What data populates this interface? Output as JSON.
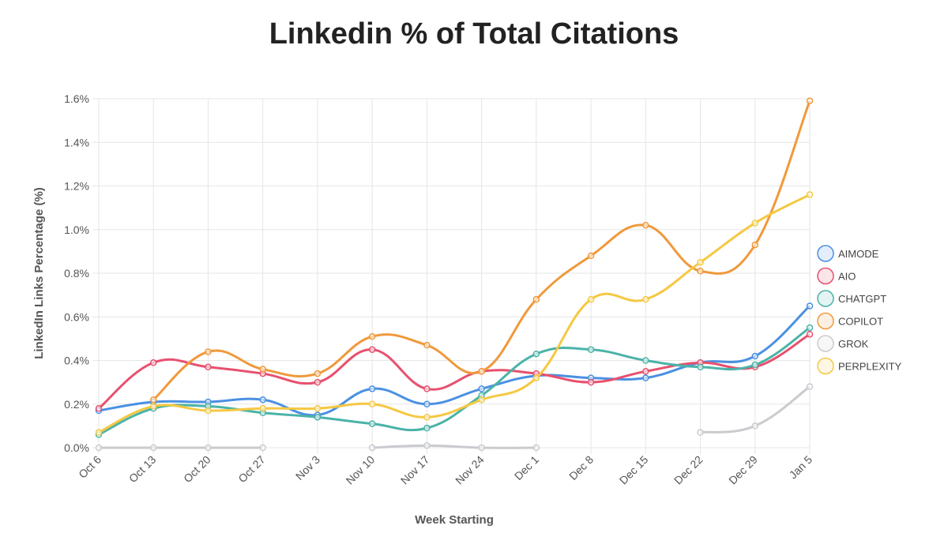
{
  "chart_data": {
    "type": "line",
    "title": "Linkedin % of Total Citations",
    "xlabel": "Week Starting",
    "ylabel": "LinkedIn Links Percentage (%)",
    "ylim": [
      0,
      1.6
    ],
    "yticks": [
      "0.0%",
      "0.2%",
      "0.4%",
      "0.6%",
      "0.8%",
      "1.0%",
      "1.2%",
      "1.4%",
      "1.6%"
    ],
    "grid": true,
    "legend_position": "right",
    "categories": [
      "Oct 6",
      "Oct 13",
      "Oct 20",
      "Oct 27",
      "Nov 3",
      "Nov 10",
      "Nov 17",
      "Nov 24",
      "Dec 1",
      "Dec 8",
      "Dec 15",
      "Dec 22",
      "Dec 29",
      "Jan 5"
    ],
    "series": [
      {
        "name": "AIMODE",
        "color": "#4a90e2",
        "values": [
          0.17,
          0.21,
          0.21,
          0.22,
          0.15,
          0.27,
          0.2,
          0.27,
          0.33,
          0.32,
          0.32,
          0.39,
          0.42,
          0.65
        ]
      },
      {
        "name": "AIO",
        "color": "#e8506e",
        "values": [
          0.18,
          0.39,
          0.37,
          0.34,
          0.3,
          0.45,
          0.27,
          0.35,
          0.34,
          0.3,
          0.35,
          0.39,
          0.37,
          0.52
        ]
      },
      {
        "name": "CHATGPT",
        "color": "#4bb3a8",
        "values": [
          0.06,
          0.18,
          0.19,
          0.16,
          0.14,
          0.11,
          0.09,
          0.24,
          0.43,
          0.45,
          0.4,
          0.37,
          0.38,
          0.55
        ]
      },
      {
        "name": "COPILOT",
        "color": "#f0993b",
        "values": [
          null,
          0.22,
          0.44,
          0.36,
          0.34,
          0.51,
          0.47,
          0.35,
          0.68,
          0.88,
          1.02,
          0.81,
          0.93,
          1.59
        ]
      },
      {
        "name": "GROK",
        "color": "#c9cbcf",
        "values": [
          0,
          0,
          0,
          0,
          null,
          0,
          0.01,
          0,
          0,
          null,
          null,
          0.07,
          0.1,
          0.28
        ]
      },
      {
        "name": "PERPLEXITY",
        "color": "#f5c842",
        "values": [
          0.07,
          0.19,
          0.17,
          0.18,
          0.18,
          0.2,
          0.14,
          0.22,
          0.32,
          0.68,
          0.68,
          0.85,
          1.03,
          1.16
        ]
      }
    ]
  }
}
